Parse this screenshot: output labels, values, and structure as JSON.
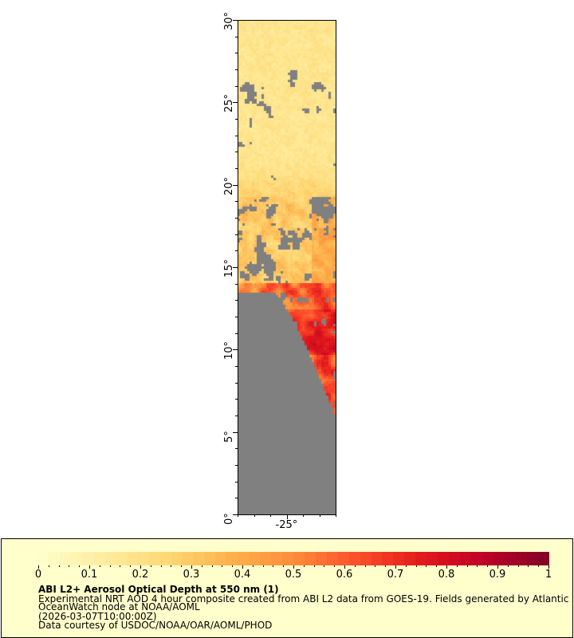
{
  "map": {
    "lat_range": [
      0,
      30
    ],
    "lon_range": [
      -28,
      -22
    ],
    "y_ticks": [
      "0°",
      "5°",
      "10°",
      "15°",
      "20°",
      "25°",
      "30°"
    ],
    "x_ticks": [
      "-25°"
    ],
    "no_data_color": "#808080"
  },
  "legend": {
    "colorbar_ticks": [
      "0",
      "0.1",
      "0.2",
      "0.3",
      "0.4",
      "0.5",
      "0.6",
      "0.7",
      "0.8",
      "0.9",
      "1"
    ],
    "colorbar_range": [
      0,
      1
    ],
    "colors": [
      "#ffffcc",
      "#ffeda0",
      "#fed976",
      "#feb24c",
      "#fd8d3c",
      "#fc4e2a",
      "#e31a1c",
      "#bd0026",
      "#800026"
    ],
    "title": "ABI L2+ Aerosol Optical Depth at 550 nm (1)",
    "description_line1": "Experimental NRT AOD 4 hour composite created from ABI L2 data from GOES-19. Fields generated by Atlantic",
    "description_line2": "OceanWatch node at NOAA/AOML",
    "time": "(2026-03-07T10:00:00Z)",
    "credit": "Data courtesy of USDOC/NOAA/OAR/AOML/PHOD"
  }
}
